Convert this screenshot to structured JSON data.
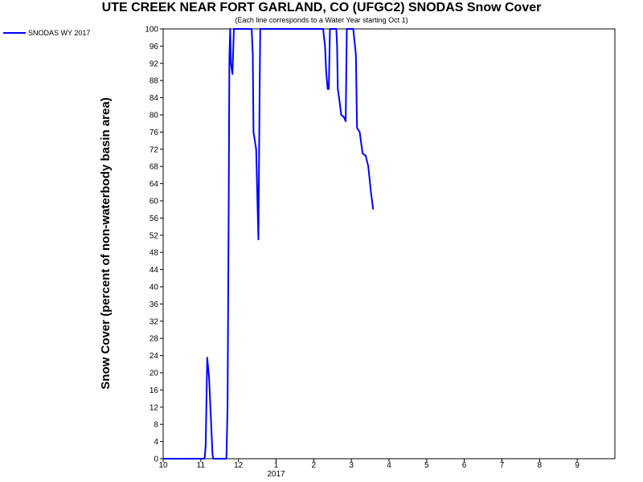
{
  "chart_data": {
    "type": "line",
    "title": "UTE CREEK NEAR FORT GARLAND, CO (UFGC2) SNODAS Snow Cover",
    "subtitle": "(Each line corresponds to a Water Year starting Oct 1)",
    "ylabel": "Snow Cover (percent of non-waterbody basin area)",
    "xlabel": "",
    "xlim": [
      10,
      22
    ],
    "ylim": [
      0,
      100
    ],
    "x_ticks": [
      {
        "value": 10,
        "label": "10"
      },
      {
        "value": 11,
        "label": "11"
      },
      {
        "value": 12,
        "label": "12"
      },
      {
        "value": 13,
        "label": "1"
      },
      {
        "value": 14,
        "label": "2"
      },
      {
        "value": 15,
        "label": "3"
      },
      {
        "value": 16,
        "label": "4"
      },
      {
        "value": 17,
        "label": "5"
      },
      {
        "value": 18,
        "label": "6"
      },
      {
        "value": 19,
        "label": "7"
      },
      {
        "value": 20,
        "label": "8"
      },
      {
        "value": 21,
        "label": "9"
      }
    ],
    "x_year_label": {
      "value": 13,
      "label": "2017"
    },
    "y_ticks": [
      0,
      4,
      8,
      12,
      16,
      20,
      24,
      28,
      32,
      36,
      40,
      44,
      48,
      52,
      56,
      60,
      64,
      68,
      72,
      76,
      80,
      84,
      88,
      92,
      96,
      100
    ],
    "grid": false,
    "legend": "top-left",
    "color": "#0000ff",
    "series": [
      {
        "name": "SNODAS WY 2017",
        "points": [
          [
            10.0,
            0
          ],
          [
            11.1,
            0
          ],
          [
            11.13,
            3
          ],
          [
            11.17,
            23.5
          ],
          [
            11.22,
            19
          ],
          [
            11.27,
            9
          ],
          [
            11.31,
            1
          ],
          [
            11.33,
            0
          ],
          [
            11.68,
            0
          ],
          [
            11.71,
            12
          ],
          [
            11.74,
            57
          ],
          [
            11.76,
            93
          ],
          [
            11.78,
            100
          ],
          [
            11.8,
            92
          ],
          [
            11.84,
            89.5
          ],
          [
            11.88,
            100
          ],
          [
            12.35,
            100
          ],
          [
            12.38,
            94
          ],
          [
            12.4,
            76
          ],
          [
            12.47,
            72
          ],
          [
            12.53,
            51
          ],
          [
            12.56,
            83
          ],
          [
            12.58,
            100
          ],
          [
            14.25,
            100
          ],
          [
            14.3,
            96
          ],
          [
            14.33,
            90
          ],
          [
            14.37,
            86
          ],
          [
            14.4,
            86
          ],
          [
            14.43,
            100
          ],
          [
            14.6,
            100
          ],
          [
            14.62,
            96
          ],
          [
            14.64,
            86
          ],
          [
            14.69,
            83
          ],
          [
            14.73,
            80
          ],
          [
            14.8,
            79.5
          ],
          [
            14.85,
            78.5
          ],
          [
            14.88,
            100
          ],
          [
            15.05,
            100
          ],
          [
            15.12,
            94
          ],
          [
            15.15,
            77
          ],
          [
            15.22,
            76
          ],
          [
            15.3,
            71
          ],
          [
            15.38,
            70.5
          ],
          [
            15.45,
            68
          ],
          [
            15.52,
            62
          ],
          [
            15.58,
            58
          ]
        ]
      }
    ]
  }
}
